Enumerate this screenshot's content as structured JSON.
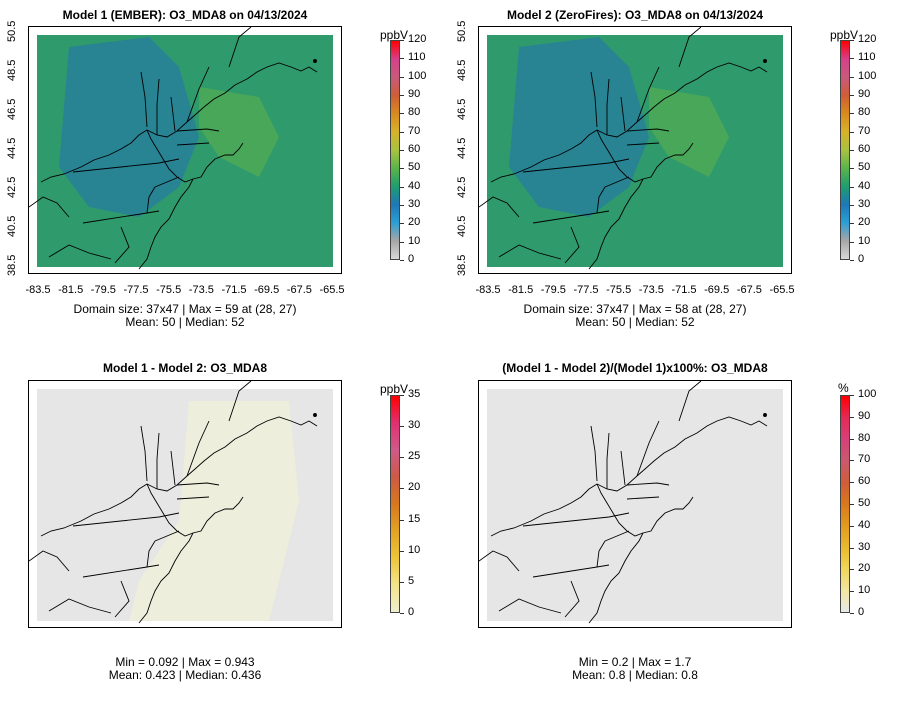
{
  "panels": [
    {
      "id": "p1",
      "title": "Model 1 (EMBER): O3_MDA8 on 04/13/2024",
      "stats_line1": "Domain size: 37x47 | Max = 59 at (28, 27)",
      "stats_line2": "Mean: 50 |  Median: 52",
      "colorbar": {
        "unit": "ppbV",
        "ticks": [
          "0",
          "10",
          "20",
          "30",
          "40",
          "50",
          "60",
          "70",
          "80",
          "90",
          "100",
          "110",
          "120"
        ],
        "gradient": [
          "#d9d9d9",
          "#a6a6a6",
          "#2b9fd6",
          "#1e78b8",
          "#1f9e6e",
          "#5bb54a",
          "#a9c240",
          "#d7b22a",
          "#d98b1e",
          "#cf5d37",
          "#c85a7c",
          "#d6408a",
          "#ff0000"
        ]
      },
      "field_color": "#2f9a6c",
      "axes": {
        "x_ticks": [
          "-83.5",
          "-81.5",
          "-79.5",
          "-77.5",
          "-75.5",
          "-73.5",
          "-71.5",
          "-69.5",
          "-67.5",
          "-65.5"
        ],
        "y_ticks": [
          "38.5",
          "40.5",
          "42.5",
          "44.5",
          "46.5",
          "48.5",
          "50.5"
        ]
      }
    },
    {
      "id": "p2",
      "title": "Model 2 (ZeroFires): O3_MDA8 on 04/13/2024",
      "stats_line1": "Domain size: 37x47 | Max = 58 at (28, 27)",
      "stats_line2": "Mean: 50 |  Median: 52",
      "colorbar": {
        "unit": "ppbV",
        "ticks": [
          "0",
          "10",
          "20",
          "30",
          "40",
          "50",
          "60",
          "70",
          "80",
          "90",
          "100",
          "110",
          "120"
        ],
        "gradient": [
          "#d9d9d9",
          "#a6a6a6",
          "#2b9fd6",
          "#1e78b8",
          "#1f9e6e",
          "#5bb54a",
          "#a9c240",
          "#d7b22a",
          "#d98b1e",
          "#cf5d37",
          "#c85a7c",
          "#d6408a",
          "#ff0000"
        ]
      },
      "field_color": "#2f9a6c",
      "axes": {
        "x_ticks": [
          "-83.5",
          "-81.5",
          "-79.5",
          "-77.5",
          "-75.5",
          "-73.5",
          "-71.5",
          "-69.5",
          "-67.5",
          "-65.5"
        ],
        "y_ticks": [
          "38.5",
          "40.5",
          "42.5",
          "44.5",
          "46.5",
          "48.5",
          "50.5"
        ]
      }
    },
    {
      "id": "p3",
      "title": "Model 1 - Model 2: O3_MDA8",
      "stats_line1": "Min = 0.092 | Max = 0.943",
      "stats_line2": "Mean: 0.423 |  Median: 0.436",
      "colorbar": {
        "unit": "ppbV",
        "ticks": [
          "0",
          "5",
          "10",
          "15",
          "20",
          "25",
          "30",
          "35"
        ],
        "gradient": [
          "#efeed0",
          "#f3e48a",
          "#ecc53a",
          "#e3a224",
          "#d8781e",
          "#cd5a46",
          "#d05a8a",
          "#e03070",
          "#ff0000"
        ]
      },
      "field_color": "#e6e6e6",
      "axes": {
        "x_ticks": [],
        "y_ticks": []
      }
    },
    {
      "id": "p4",
      "title": "(Model 1 - Model 2)/(Model 1)x100%: O3_MDA8",
      "stats_line1": "Min = 0.2 | Max = 1.7",
      "stats_line2": "Mean: 0.8 |  Median: 0.8",
      "colorbar": {
        "unit": "%",
        "ticks": [
          "0",
          "10",
          "20",
          "30",
          "40",
          "50",
          "60",
          "70",
          "80",
          "90",
          "100"
        ],
        "gradient": [
          "#e9e9e9",
          "#f3e6a0",
          "#f0d65a",
          "#e8b92e",
          "#e29a1f",
          "#d9781e",
          "#cf5c3a",
          "#c95a6e",
          "#d6407a",
          "#e52a55",
          "#ff0000"
        ]
      },
      "field_color": "#e6e6e6",
      "axes": {
        "x_ticks": [],
        "y_ticks": []
      }
    }
  ]
}
